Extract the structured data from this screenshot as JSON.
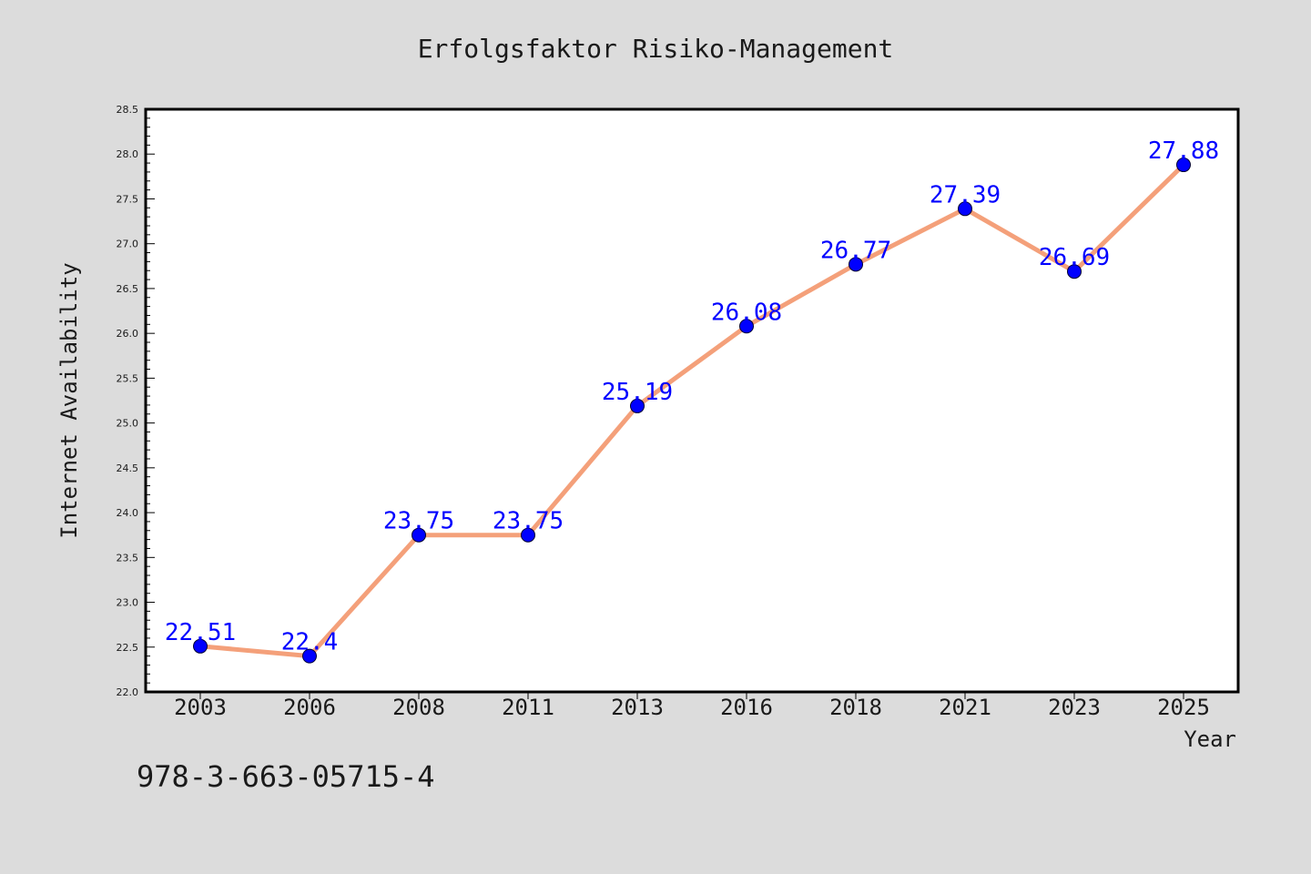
{
  "chart_data": {
    "type": "line",
    "title": "Erfolgsfaktor Risiko-Management",
    "xlabel": "Year",
    "ylabel": "Internet Availability",
    "categories": [
      "2003",
      "2006",
      "2008",
      "2011",
      "2013",
      "2016",
      "2018",
      "2021",
      "2023",
      "2025"
    ],
    "series": [
      {
        "values": [
          22.51,
          22.4,
          23.75,
          23.75,
          25.19,
          26.08,
          26.77,
          27.39,
          26.69,
          27.88
        ],
        "data_labels": [
          "22.51",
          "22.4",
          "23.75",
          "23.75",
          "25.19",
          "26.08",
          "26.77",
          "27.39",
          "26.69",
          "27.88"
        ],
        "line_color": "#f4a07a",
        "marker_color": "#0000ff"
      }
    ],
    "ylim": [
      22.0,
      28.5
    ],
    "yticks": [
      "22.0",
      "22.5",
      "23.0",
      "23.5",
      "24.0",
      "24.5",
      "25.0",
      "25.5",
      "26.0",
      "26.5",
      "27.0",
      "27.5",
      "28.0",
      "28.5"
    ],
    "grid": false,
    "legend": "none"
  },
  "annotation": "978-3-663-05715-4",
  "colors": {
    "background": "#dcdcdc",
    "plot_background": "#ffffff",
    "line": "#f4a07a",
    "marker": "#0000ff",
    "data_label": "#0000ff"
  }
}
